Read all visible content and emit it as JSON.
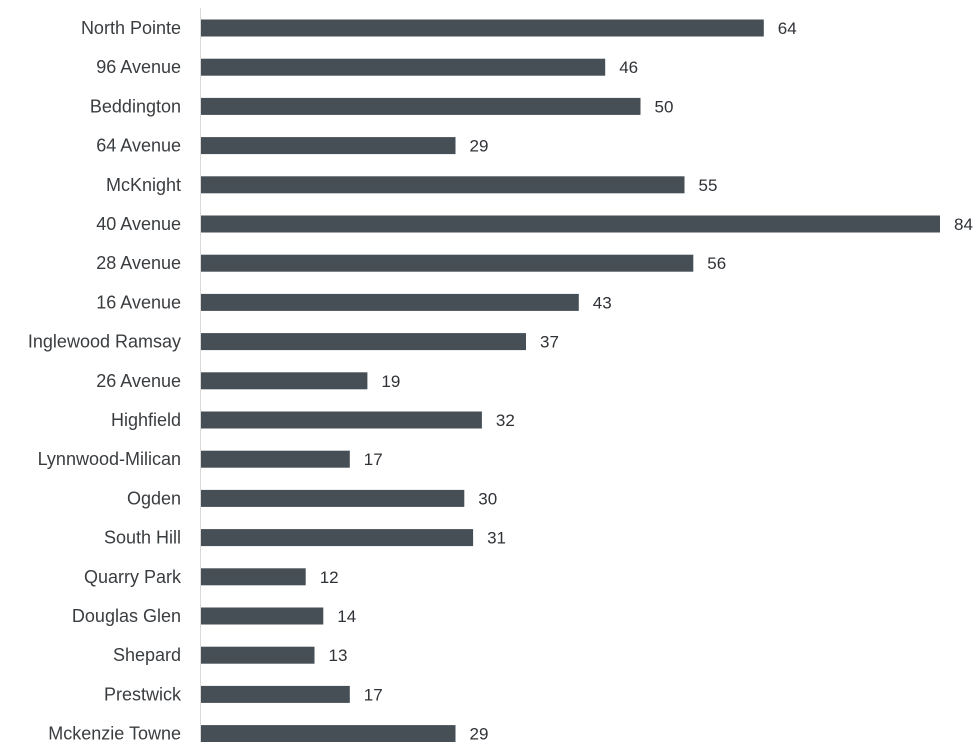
{
  "colors": {
    "bar": "#464e56",
    "axis": "#d9d9d9",
    "label": "#3a3d40"
  },
  "chart_data": {
    "type": "bar",
    "orientation": "horizontal",
    "title": "",
    "xlabel": "",
    "ylabel": "",
    "grid": false,
    "legend": "none",
    "xlim": [
      0,
      84
    ],
    "categories": [
      "North Pointe",
      "96 Avenue",
      "Beddington",
      "64 Avenue",
      "McKnight",
      "40 Avenue",
      "28 Avenue",
      "16 Avenue",
      "Inglewood Ramsay",
      "26 Avenue",
      "Highfield",
      "Lynnwood-Milican",
      "Ogden",
      "South Hill",
      "Quarry Park",
      "Douglas Glen",
      "Shepard",
      "Prestwick",
      "Mckenzie Towne"
    ],
    "values": [
      64,
      46,
      50,
      29,
      55,
      84,
      56,
      43,
      37,
      19,
      32,
      17,
      30,
      31,
      12,
      14,
      13,
      17,
      29
    ]
  }
}
